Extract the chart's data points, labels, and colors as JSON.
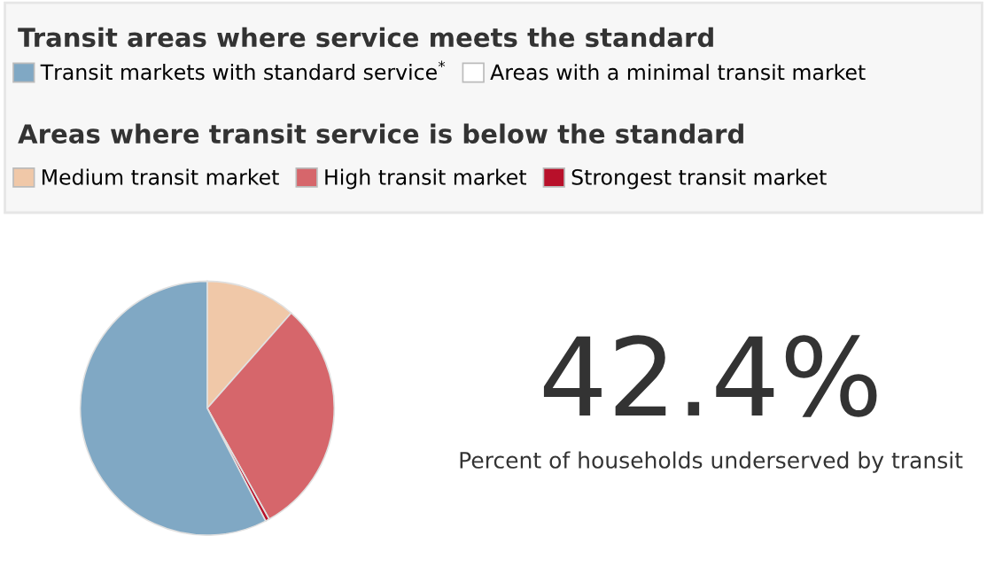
{
  "chart_data": {
    "type": "pie",
    "categories": [
      "Medium transit market",
      "High transit market",
      "Strongest transit market",
      "Areas with a minimal transit market",
      "Transit markets with standard service$^{*}$"
    ],
    "values": [
      11.5,
      30.4,
      0.5,
      null,
      57.6
    ],
    "colors": [
      "#f0c8a8",
      "#d6666b",
      "#b8102a",
      "#ffffff",
      "#80a8c4"
    ],
    "legend": "top",
    "annotations": [
      "Transit areas where service meets the standard",
      "Areas where transit service is below the standard",
      "42.4%",
      "Percent of households underserved by transit"
    ]
  }
}
